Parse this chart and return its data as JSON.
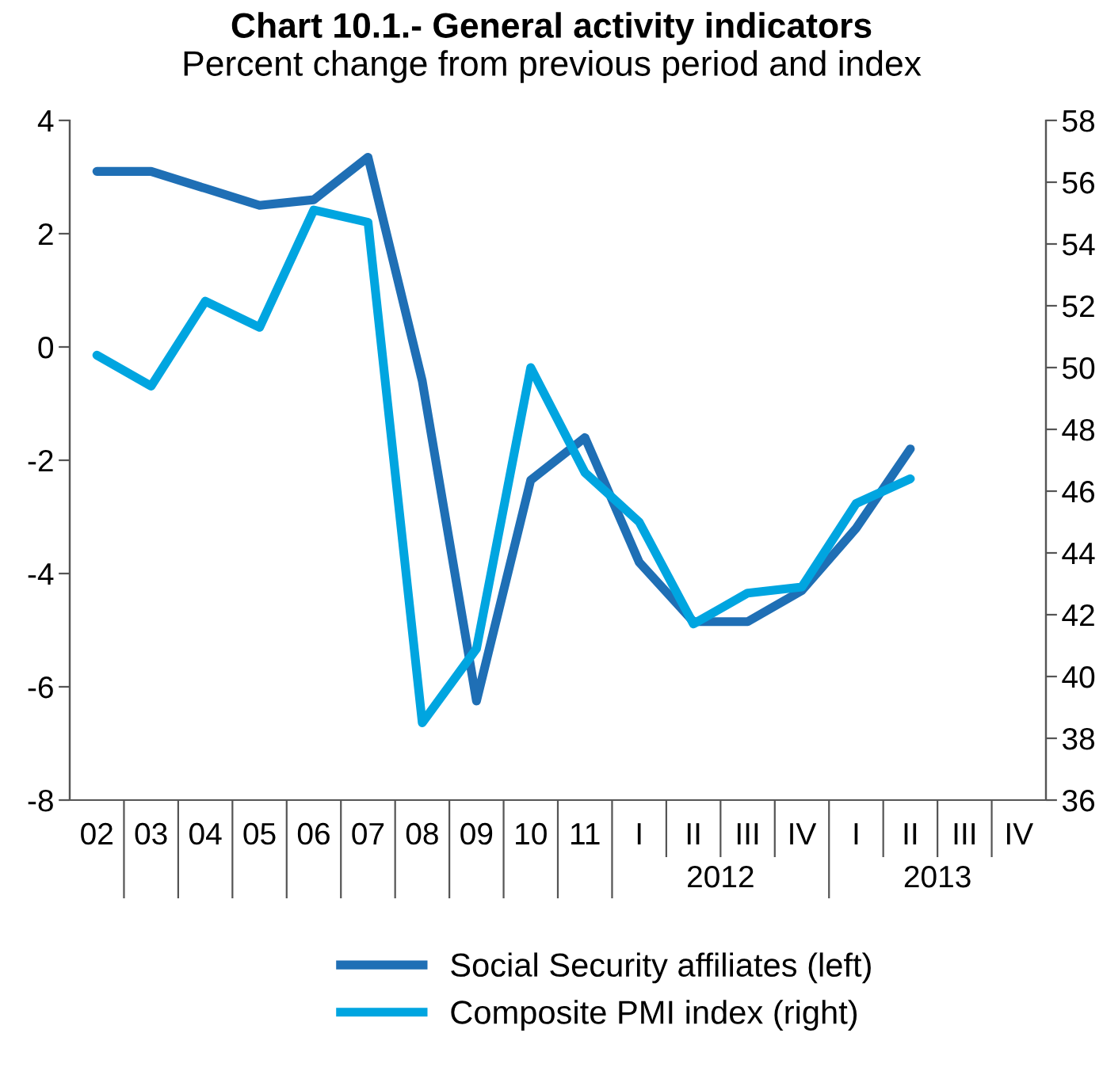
{
  "chart_data": {
    "type": "line",
    "title": "Chart 10.1.- General activity indicators",
    "subtitle": "Percent change from previous period and index",
    "categories": [
      "02",
      "03",
      "04",
      "05",
      "06",
      "07",
      "08",
      "09",
      "10",
      "11",
      "I",
      "II",
      "III",
      "IV",
      "I",
      "II",
      "III",
      "IV"
    ],
    "series": [
      {
        "name": "Social Security affiliates (left)",
        "color": "#1f6fb5",
        "values": [
          3.1,
          3.1,
          2.8,
          2.5,
          2.6,
          3.35,
          -0.6,
          -6.25,
          -2.35,
          -1.6,
          -3.8,
          -4.85,
          -4.85,
          -4.3,
          -3.2,
          -1.8,
          null,
          null
        ]
      },
      {
        "name": "Composite PMI index (right)",
        "color": "#00a5e0",
        "axis": "y2",
        "values": [
          50.4,
          49.4,
          52.15,
          51.3,
          55.1,
          54.7,
          38.5,
          40.9,
          50.0,
          46.6,
          45.0,
          41.7,
          42.7,
          42.9,
          45.6,
          46.4,
          null,
          null
        ]
      }
    ],
    "ylim": [
      -8,
      4
    ],
    "yticks": [
      -8,
      -6,
      -4,
      -2,
      0,
      2,
      4
    ],
    "y2lim": [
      36,
      58
    ],
    "y2ticks": [
      36,
      38,
      40,
      42,
      44,
      46,
      48,
      50,
      52,
      54,
      56,
      58
    ],
    "annotations": [
      "2012",
      "2013"
    ],
    "grid": false,
    "legend": "bottom",
    "marker": "none",
    "line_style": "solid"
  }
}
